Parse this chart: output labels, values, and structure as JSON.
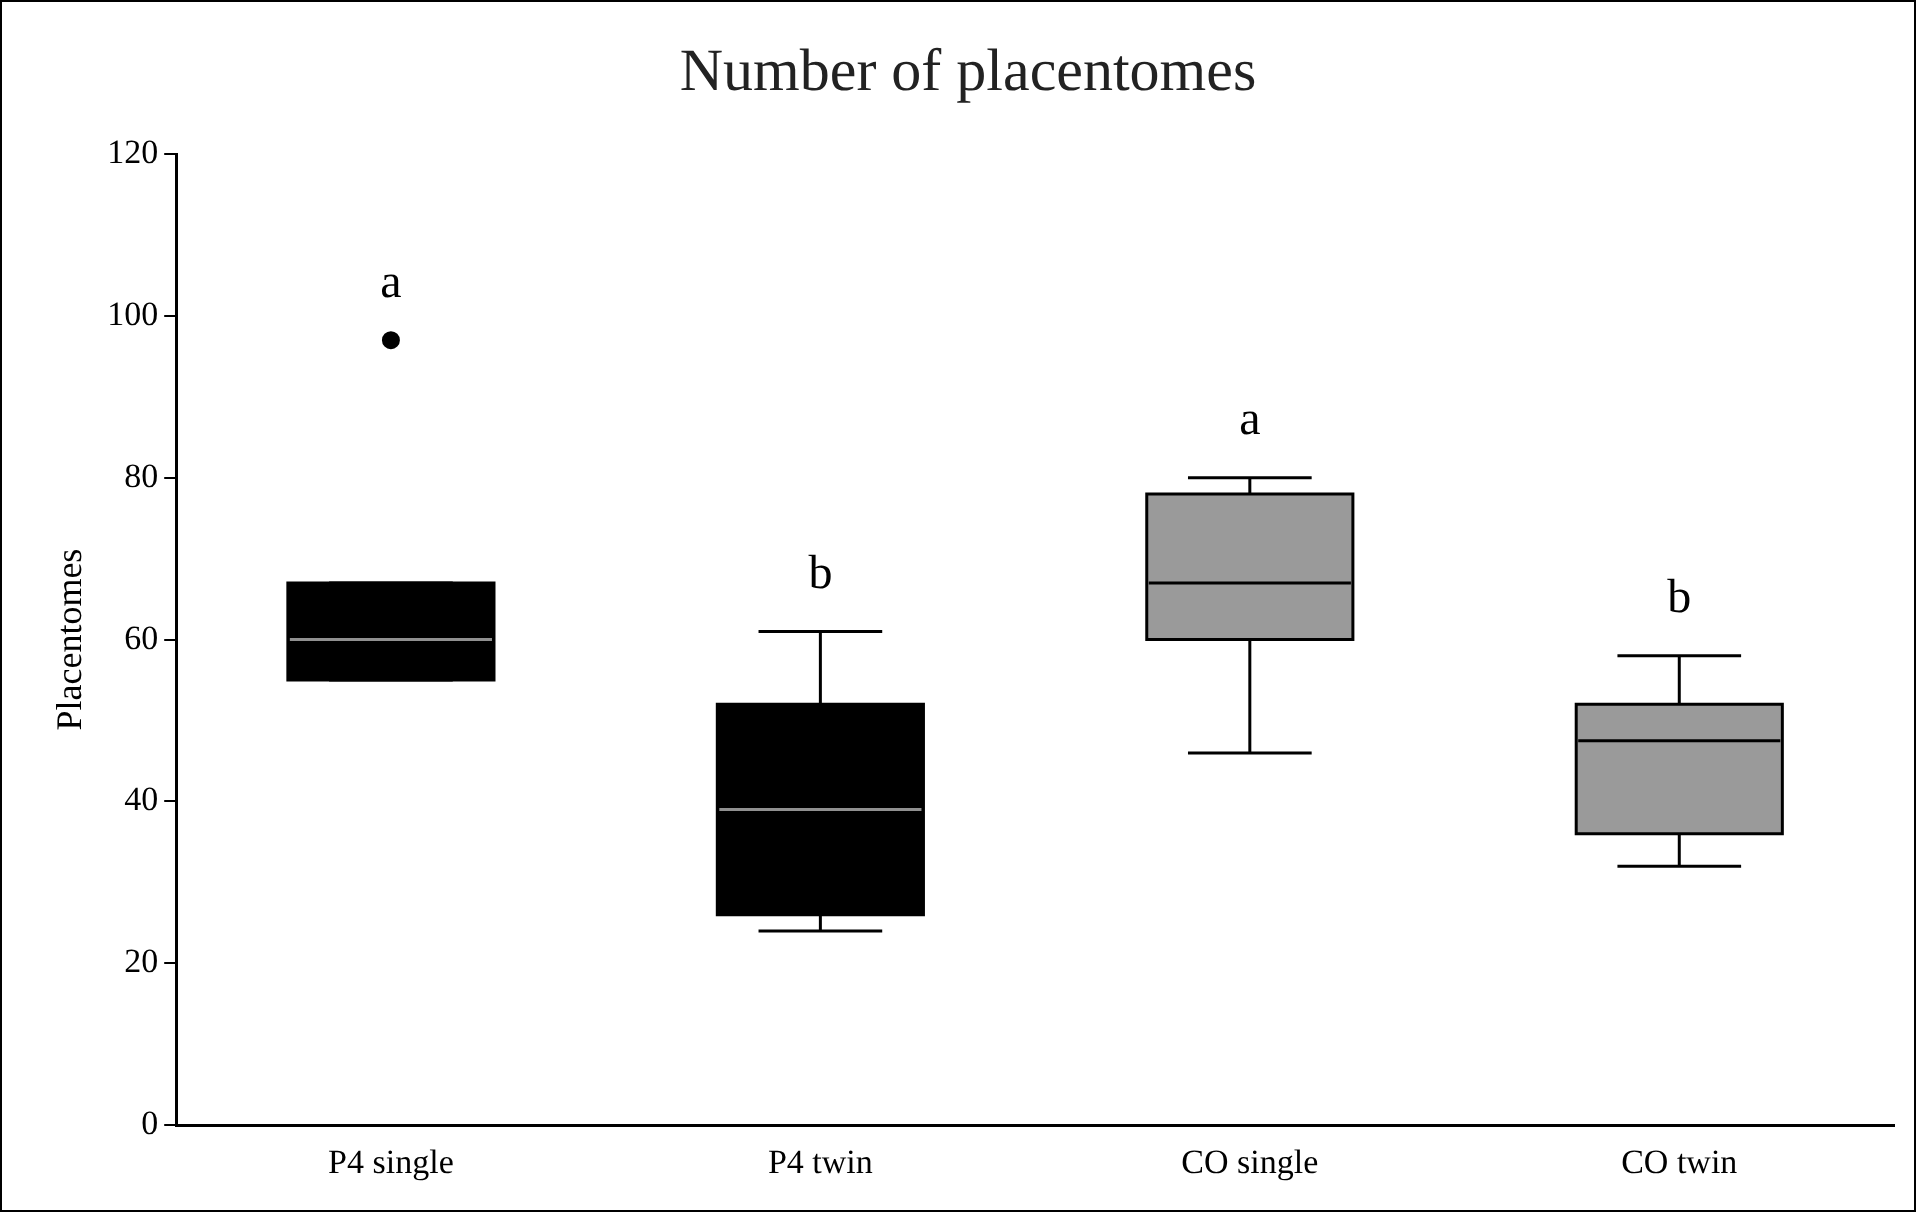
{
  "chart_data": {
    "type": "box",
    "title": "Number of placentomes",
    "ylabel": "Placentomes",
    "categories": [
      "P4 single",
      "P4 twin",
      "CO single",
      "CO twin"
    ],
    "colors": [
      "#000000",
      "#000000",
      "#9a9a9a",
      "#9a9a9a"
    ],
    "boxes": [
      {
        "low": 55,
        "q1": 55,
        "median": 60,
        "q3": 67,
        "high": 67,
        "outliers": [
          97
        ]
      },
      {
        "low": 24,
        "q1": 26,
        "median": 39,
        "q3": 52,
        "high": 61
      },
      {
        "low": 46,
        "q1": 60,
        "median": 67,
        "q3": 78,
        "high": 80
      },
      {
        "low": 32,
        "q1": 36,
        "median": 47.5,
        "q3": 52,
        "high": 58
      }
    ],
    "ylim": [
      0,
      120
    ],
    "yticks": [
      0,
      20,
      40,
      60,
      80,
      100,
      120
    ],
    "grid": false,
    "legend": false,
    "annotations": [
      "a",
      "b",
      "a",
      "b"
    ]
  }
}
